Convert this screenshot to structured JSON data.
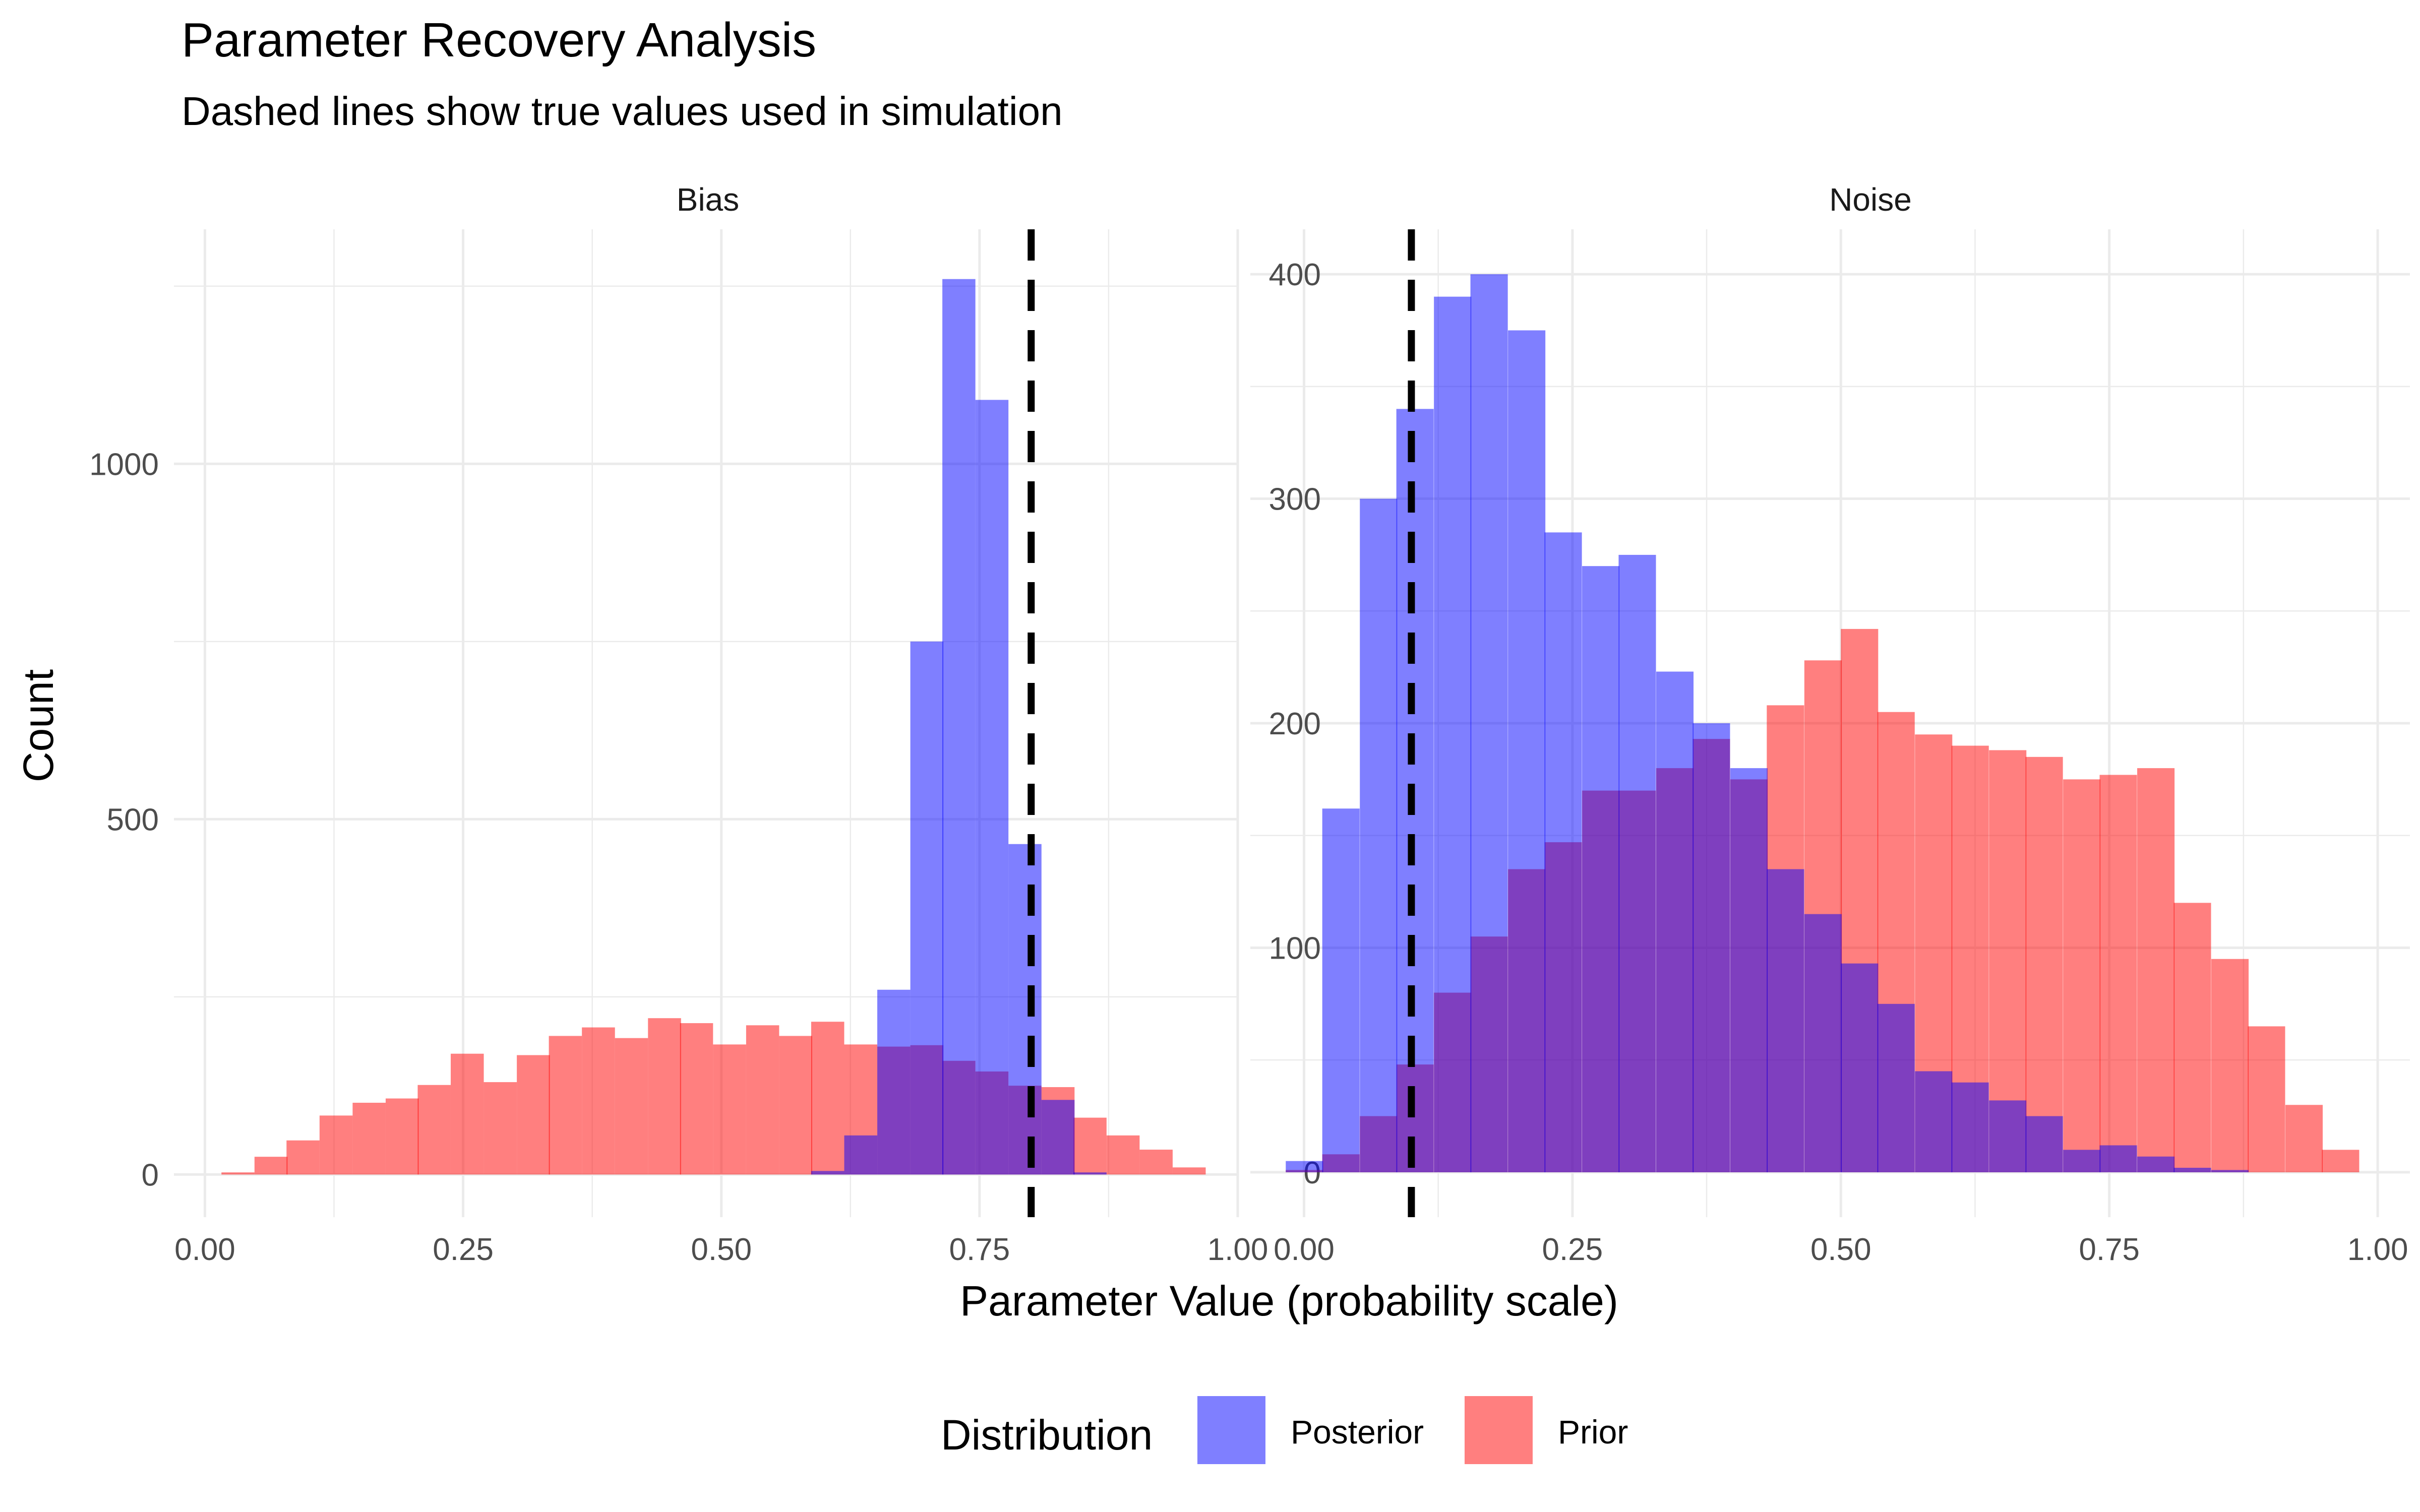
{
  "chart_data": {
    "type": "histogram",
    "title": "Parameter Recovery Analysis",
    "subtitle": "Dashed lines show true values used in simulation",
    "xlabel": "Parameter Value (probability scale)",
    "ylabel": "Count",
    "legend": {
      "title": "Distribution",
      "placement": "bottom",
      "items": [
        {
          "name": "Posterior",
          "color": "#0000FF",
          "opacity": 0.5
        },
        {
          "name": "Prior",
          "color": "#FF0000",
          "opacity": 0.5
        }
      ]
    },
    "grid": true,
    "panels": [
      {
        "name": "Bias",
        "xlim": [
          -0.03,
          1.0
        ],
        "ylim": [
          -60,
          1330
        ],
        "x_ticks": [
          "0.00",
          "0.25",
          "0.50",
          "0.75",
          "1.00"
        ],
        "x_tick_values": [
          0,
          0.25,
          0.5,
          0.75,
          1.0
        ],
        "y_ticks": [
          "0",
          "500",
          "1000"
        ],
        "y_tick_values": [
          0,
          500,
          1000
        ],
        "true_value": 0.8,
        "bin_width": 0.0317,
        "series": [
          {
            "name": "Prior",
            "bin_starts": [
              0.016,
              0.048,
              0.079,
              0.111,
              0.143,
              0.175,
              0.206,
              0.238,
              0.27,
              0.302,
              0.333,
              0.365,
              0.397,
              0.429,
              0.46,
              0.492,
              0.524,
              0.556,
              0.587,
              0.619,
              0.651,
              0.683,
              0.714,
              0.746,
              0.778,
              0.81,
              0.841,
              0.873,
              0.905,
              0.937
            ],
            "values": [
              3,
              25,
              48,
              83,
              101,
              107,
              126,
              170,
              130,
              168,
              195,
              207,
              192,
              220,
              213,
              183,
              210,
              195,
              215,
              183,
              180,
              182,
              160,
              145,
              125,
              123,
              80,
              55,
              35,
              10
            ]
          },
          {
            "name": "Posterior",
            "bin_starts": [
              0.587,
              0.619,
              0.651,
              0.683,
              0.714,
              0.746,
              0.778,
              0.81,
              0.841
            ],
            "values": [
              5,
              55,
              260,
              750,
              1260,
              1090,
              465,
              105,
              3
            ]
          }
        ]
      },
      {
        "name": "Noise",
        "xlim": [
          -0.05,
          1.03
        ],
        "ylim": [
          -20,
          420
        ],
        "x_ticks": [
          "0.00",
          "0.25",
          "0.50",
          "0.75",
          "1.00"
        ],
        "x_tick_values": [
          0,
          0.25,
          0.5,
          0.75,
          1.0
        ],
        "y_ticks": [
          "0",
          "100",
          "200",
          "300",
          "400"
        ],
        "y_tick_values": [
          0,
          100,
          200,
          300,
          400
        ],
        "true_value": 0.1,
        "bin_width": 0.0345,
        "series": [
          {
            "name": "Prior",
            "bin_starts": [
              -0.017,
              0.017,
              0.052,
              0.086,
              0.121,
              0.155,
              0.19,
              0.224,
              0.259,
              0.293,
              0.328,
              0.362,
              0.397,
              0.431,
              0.466,
              0.5,
              0.534,
              0.569,
              0.603,
              0.638,
              0.672,
              0.707,
              0.741,
              0.776,
              0.81,
              0.845,
              0.879,
              0.914,
              0.948
            ],
            "values": [
              1,
              8,
              25,
              48,
              80,
              105,
              135,
              147,
              170,
              170,
              180,
              193,
              175,
              208,
              228,
              242,
              205,
              195,
              190,
              188,
              185,
              175,
              177,
              180,
              120,
              95,
              65,
              30,
              10
            ]
          },
          {
            "name": "Posterior",
            "bin_starts": [
              -0.017,
              0.017,
              0.052,
              0.086,
              0.121,
              0.155,
              0.19,
              0.224,
              0.259,
              0.293,
              0.328,
              0.362,
              0.397,
              0.431,
              0.466,
              0.5,
              0.534,
              0.569,
              0.603,
              0.638,
              0.672,
              0.707,
              0.741,
              0.776,
              0.81,
              0.845
            ],
            "values": [
              5,
              162,
              300,
              340,
              390,
              400,
              375,
              285,
              270,
              275,
              223,
              200,
              180,
              135,
              115,
              93,
              75,
              45,
              40,
              32,
              25,
              10,
              12,
              7,
              2,
              1
            ]
          }
        ]
      }
    ]
  }
}
